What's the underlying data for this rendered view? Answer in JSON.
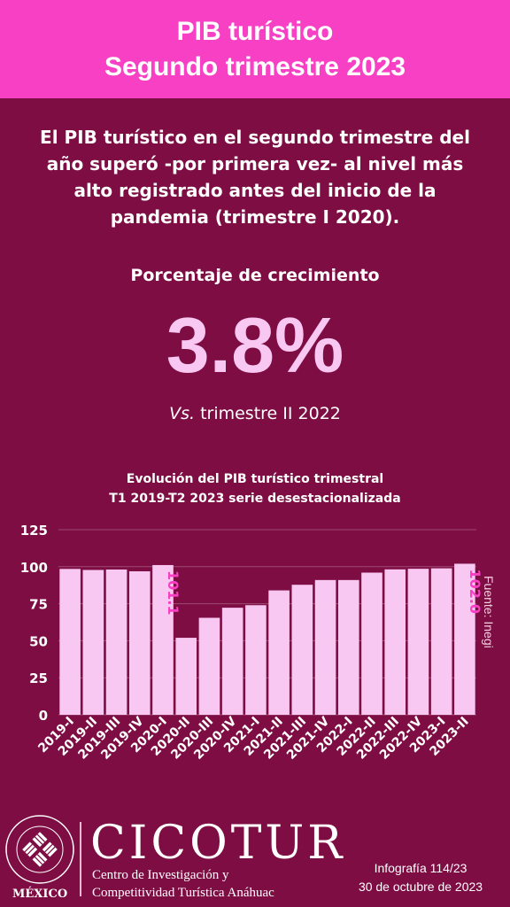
{
  "header": {
    "title_line1": "PIB turístico",
    "title_line2": "Segundo trimestre 2023"
  },
  "intro": {
    "text": "El PIB turístico en el segundo trimestre del año superó -por primera vez- al nivel más alto registrado antes del inicio de la pandemia (trimestre I 2020)."
  },
  "metric": {
    "label": "Porcentaje de crecimiento",
    "value": "3.8%",
    "vs_prefix": "Vs.",
    "vs_rest": " trimestre II 2022"
  },
  "chart": {
    "title_line1": "Evolución del PIB turístico trimestral",
    "title_line2": "T1 2019-T2 2023 serie desestacionalizada",
    "source": "Fuente: Inegi"
  },
  "chart_data": {
    "type": "bar",
    "title": "Evolución del PIB turístico trimestral T1 2019-T2 2023 serie desestacionalizada",
    "categories": [
      "2019-I",
      "2019-II",
      "2019-III",
      "2019-IV",
      "2020-I",
      "2020-II",
      "2020-III",
      "2020-IV",
      "2021-I",
      "2021-II",
      "2021-III",
      "2021-IV",
      "2022-I",
      "2022-II",
      "2022-III",
      "2022-IV",
      "2023-I",
      "2023-II"
    ],
    "values": [
      98.5,
      97.8,
      98.1,
      96.9,
      101.1,
      52.0,
      65.5,
      72.3,
      74.0,
      84.0,
      87.8,
      91.0,
      91.0,
      96.0,
      98.2,
      98.6,
      98.9,
      102.0
    ],
    "data_labels": {
      "4": "101.1",
      "17": "102.0"
    },
    "yticks": [
      0,
      25,
      50,
      75,
      100,
      125
    ],
    "ylim": [
      0,
      125
    ],
    "grid": true,
    "bar_color": "#f8c7f2",
    "label_color": "#f740c4"
  },
  "footer": {
    "seal_text": "UNIVERSIDAD ANÁHUAC · VINCE IN BONO MALUM",
    "seal_country": "MÉXICO",
    "org_name": "CICOTUR",
    "org_sub_line1": "Centro de Investigación y",
    "org_sub_line2": "Competitividad Turística Anáhuac",
    "infografia": "Infografía 114/23",
    "date": "30 de octubre de 2023"
  },
  "colors": {
    "background": "#7d0d43",
    "header": "#f740c4",
    "accent": "#f8c7f2"
  }
}
